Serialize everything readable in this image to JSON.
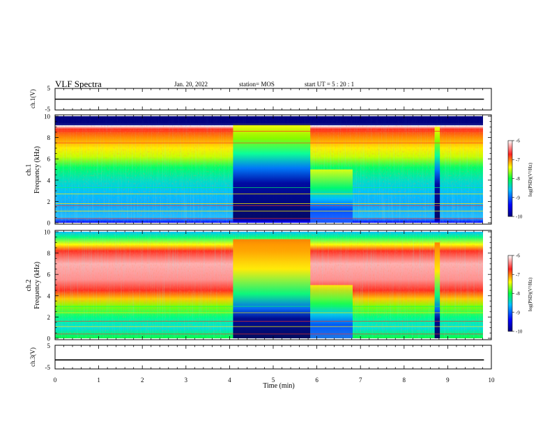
{
  "header": {
    "title": "VLF Spectra",
    "date": "Jan. 20, 2022",
    "station": "station= MOS",
    "start": "start  UT =   5 : 20 : 1"
  },
  "chart_data": [
    {
      "type": "line",
      "name": "ch1-waveform",
      "ylabel": "ch.1(V)",
      "ylim": [
        -5,
        5
      ],
      "y_ticks": [
        "5",
        "-5"
      ],
      "xlim": [
        0,
        10
      ],
      "x": [
        0,
        9.83
      ],
      "y": [
        0,
        0
      ]
    },
    {
      "type": "heatmap",
      "name": "ch1-spectrogram",
      "ylabel_line1": "ch.1",
      "ylabel_line2": "Frequency (kHz)",
      "ylim": [
        0,
        10
      ],
      "y_ticks": [
        "0",
        "2",
        "4",
        "6",
        "8",
        "10"
      ],
      "xlim": [
        0,
        10
      ],
      "data_end_min": 9.83,
      "quiet_intervals_min": [
        [
          4.08,
          5.85
        ],
        [
          5.85,
          6.82
        ],
        [
          8.7,
          8.82
        ]
      ],
      "colorbar": {
        "label": "log(PSD)(V²/Hz)",
        "range": [
          -10,
          -6
        ],
        "ticks": [
          "-6",
          "-7",
          "-8",
          "-9",
          "-10"
        ]
      }
    },
    {
      "type": "heatmap",
      "name": "ch2-spectrogram",
      "ylabel_line1": "ch.2",
      "ylabel_line2": "Frequency (kHz)",
      "ylim": [
        0,
        10
      ],
      "y_ticks": [
        "0",
        "2",
        "4",
        "6",
        "8",
        "10"
      ],
      "xlim": [
        0,
        10
      ],
      "data_end_min": 9.83,
      "quiet_intervals_min": [
        [
          4.08,
          5.85
        ],
        [
          5.85,
          6.82
        ],
        [
          8.7,
          8.82
        ]
      ],
      "colorbar": {
        "label": "log(PSD)(V²/Hz)",
        "range": [
          -10,
          -6
        ],
        "ticks": [
          "-6",
          "-7",
          "-8",
          "-9",
          "-10"
        ]
      }
    },
    {
      "type": "line",
      "name": "ch3-waveform",
      "ylabel": "ch.3(V)",
      "ylim": [
        -5,
        5
      ],
      "y_ticks": [
        "5",
        "-5"
      ],
      "xlim": [
        0,
        10
      ],
      "x": [
        0,
        9.83
      ],
      "y": [
        -1.2,
        -1.2
      ]
    }
  ],
  "xaxis": {
    "label": "Time (min)",
    "ticks": [
      "0",
      "1",
      "2",
      "3",
      "4",
      "5",
      "6",
      "7",
      "8",
      "9",
      "10"
    ]
  },
  "colors": {
    "scale": [
      "#00007f",
      "#0000ff",
      "#00bfff",
      "#00ff40",
      "#ffff00",
      "#ff2020",
      "#ffffff"
    ]
  }
}
